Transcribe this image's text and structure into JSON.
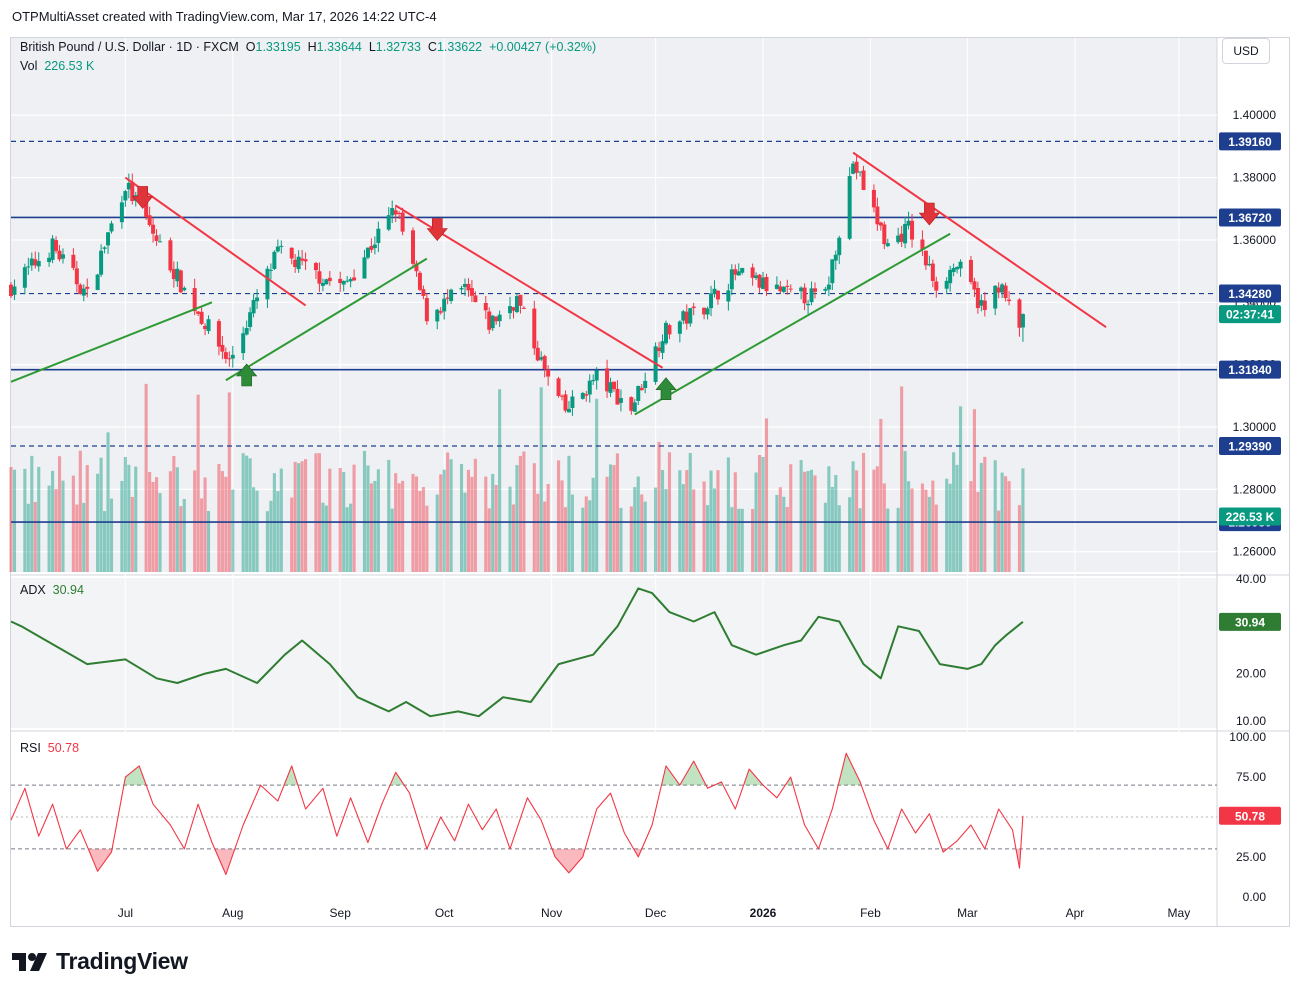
{
  "header": {
    "caption": "OTPMultiAsset created with TradingView.com, Mar 17, 2026 14:22 UTC-4"
  },
  "symbol": {
    "name": "British Pound / U.S. Dollar · 1D · FXCM",
    "open_label": "O",
    "open": "1.33195",
    "high_label": "H",
    "high": "1.33644",
    "low_label": "L",
    "low": "1.32733",
    "close_label": "C",
    "close": "1.33622",
    "change": "+0.00427 (+0.32%)"
  },
  "volume": {
    "label": "Vol",
    "value": "226.53 K"
  },
  "currency": "USD",
  "colors": {
    "up": "#089981",
    "down": "#f23645",
    "trend_down": "#f23645",
    "trend_up": "#2e9a33",
    "level": "#1e3f8f",
    "adx": "#2e7d32",
    "rsi": "#f23645",
    "badge_blue": "#1e3f8f"
  },
  "chart_data": [
    {
      "type": "candlestick",
      "pane": "price",
      "y_range": [
        1.2535,
        1.4145
      ],
      "y_ticks": [
        "1.40000",
        "1.38000",
        "1.36000",
        "1.34000",
        "1.32000",
        "1.30000",
        "1.28000",
        "1.26000"
      ],
      "x_labels": [
        "Jul",
        "Aug",
        "Sep",
        "Oct",
        "Nov",
        "Dec",
        "2026",
        "Feb",
        "Mar",
        "Apr",
        "May"
      ],
      "x_dates": [
        "2025-07-01",
        "2025-08-01",
        "2025-09-01",
        "2025-10-01",
        "2025-11-01",
        "2025-12-01",
        "2026-01-01",
        "2026-02-01",
        "2026-03-01",
        "2026-04-01",
        "2026-05-01"
      ],
      "range_start": "2025-05-29",
      "range_end": "2026-05-12",
      "last_bar": "2026-03-17",
      "key_points": [
        [
          "2025-05-29",
          1.345
        ],
        [
          "2025-06-10",
          1.358
        ],
        [
          "2025-06-20",
          1.342
        ],
        [
          "2025-07-01",
          1.378
        ],
        [
          "2025-07-10",
          1.36
        ],
        [
          "2025-07-18",
          1.344
        ],
        [
          "2025-07-31",
          1.321
        ],
        [
          "2025-08-14",
          1.356
        ],
        [
          "2025-08-25",
          1.349
        ],
        [
          "2025-09-02",
          1.345
        ],
        [
          "2025-09-17",
          1.37
        ],
        [
          "2025-09-26",
          1.336
        ],
        [
          "2025-10-07",
          1.344
        ],
        [
          "2025-10-14",
          1.333
        ],
        [
          "2025-10-22",
          1.341
        ],
        [
          "2025-10-31",
          1.315
        ],
        [
          "2025-11-05",
          1.305
        ],
        [
          "2025-11-14",
          1.316
        ],
        [
          "2025-11-24",
          1.306
        ],
        [
          "2025-12-03",
          1.33
        ],
        [
          "2025-12-15",
          1.339
        ],
        [
          "2025-12-24",
          1.349
        ],
        [
          "2026-01-09",
          1.342
        ],
        [
          "2026-01-19",
          1.342
        ],
        [
          "2026-01-27",
          1.385
        ],
        [
          "2026-02-06",
          1.358
        ],
        [
          "2026-02-12",
          1.364
        ],
        [
          "2026-02-20",
          1.346
        ],
        [
          "2026-02-26",
          1.352
        ],
        [
          "2026-03-06",
          1.337
        ],
        [
          "2026-03-10",
          1.346
        ],
        [
          "2026-03-16",
          1.331
        ],
        [
          "2026-03-17",
          1.3362
        ]
      ],
      "levels": [
        {
          "value": 1.3916,
          "label": "1.39160",
          "style": "dashed"
        },
        {
          "value": 1.3672,
          "label": "1.36720",
          "style": "solid"
        },
        {
          "value": 1.3428,
          "label": "1.34280",
          "style": "dashed"
        },
        {
          "value": 1.3184,
          "label": "1.31840",
          "style": "solid"
        },
        {
          "value": 1.2939,
          "label": "1.29390",
          "style": "dashed"
        },
        {
          "value": 1.2695,
          "label": "1.26950",
          "style": "solid"
        }
      ],
      "trend_lines": [
        {
          "color": "down",
          "from": [
            "2025-07-01",
            1.38
          ],
          "to": [
            "2025-08-22",
            1.339
          ]
        },
        {
          "color": "down",
          "from": [
            "2025-09-17",
            1.371
          ],
          "to": [
            "2025-12-03",
            1.319
          ]
        },
        {
          "color": "down",
          "from": [
            "2026-01-27",
            1.388
          ],
          "to": [
            "2026-04-10",
            1.332
          ]
        },
        {
          "color": "up",
          "from": [
            "2025-05-29",
            1.3145
          ],
          "to": [
            "2025-07-26",
            1.34
          ]
        },
        {
          "color": "up",
          "from": [
            "2025-07-30",
            1.315
          ],
          "to": [
            "2025-09-26",
            1.354
          ]
        },
        {
          "color": "up",
          "from": [
            "2025-11-25",
            1.304
          ],
          "to": [
            "2026-02-24",
            1.362
          ]
        }
      ],
      "signals": [
        {
          "type": "sell",
          "date": "2025-07-06",
          "price": 1.3733
        },
        {
          "type": "sell",
          "date": "2025-09-29",
          "price": 1.363
        },
        {
          "type": "sell",
          "date": "2026-02-18",
          "price": 1.368
        },
        {
          "type": "buy",
          "date": "2025-08-05",
          "price": 1.317
        },
        {
          "type": "buy",
          "date": "2025-12-04",
          "price": 1.3126
        }
      ],
      "last_price_badge": {
        "price": 1.3362,
        "text": "02:37:41"
      },
      "volume_badge": {
        "price": 1.2713,
        "text": "226.53 K"
      }
    },
    {
      "type": "line",
      "pane": "adx",
      "title": "ADX",
      "last_value": 30.94,
      "y_ticks": [
        "40.00",
        "20.00",
        "10.00"
      ],
      "y_range": [
        8.5,
        40.2
      ],
      "key_points": [
        [
          "2025-05-29",
          31
        ],
        [
          "2025-06-01",
          30
        ],
        [
          "2025-06-20",
          22
        ],
        [
          "2025-07-01",
          23
        ],
        [
          "2025-07-10",
          19
        ],
        [
          "2025-07-16",
          18
        ],
        [
          "2025-07-24",
          20
        ],
        [
          "2025-07-30",
          21
        ],
        [
          "2025-08-08",
          18
        ],
        [
          "2025-08-16",
          24
        ],
        [
          "2025-08-21",
          27
        ],
        [
          "2025-08-29",
          22
        ],
        [
          "2025-09-06",
          15
        ],
        [
          "2025-09-15",
          12
        ],
        [
          "2025-09-20",
          14
        ],
        [
          "2025-09-27",
          11
        ],
        [
          "2025-10-05",
          12
        ],
        [
          "2025-10-11",
          11
        ],
        [
          "2025-10-18",
          15
        ],
        [
          "2025-10-26",
          14
        ],
        [
          "2025-11-03",
          22
        ],
        [
          "2025-11-13",
          24
        ],
        [
          "2025-11-20",
          30
        ],
        [
          "2025-11-26",
          38
        ],
        [
          "2025-11-30",
          37
        ],
        [
          "2025-12-05",
          33
        ],
        [
          "2025-12-12",
          31
        ],
        [
          "2025-12-18",
          33
        ],
        [
          "2025-12-23",
          26
        ],
        [
          "2025-12-30",
          24
        ],
        [
          "2026-01-07",
          26
        ],
        [
          "2026-01-12",
          27
        ],
        [
          "2026-01-17",
          32
        ],
        [
          "2026-01-23",
          31
        ],
        [
          "2026-01-30",
          22
        ],
        [
          "2026-02-04",
          19
        ],
        [
          "2026-02-09",
          30
        ],
        [
          "2026-02-15",
          29
        ],
        [
          "2026-02-21",
          22
        ],
        [
          "2026-03-01",
          21
        ],
        [
          "2026-03-05",
          22
        ],
        [
          "2026-03-09",
          26
        ],
        [
          "2026-03-12",
          28
        ],
        [
          "2026-03-17",
          30.94
        ]
      ]
    },
    {
      "type": "line",
      "pane": "rsi",
      "title": "RSI",
      "last_value": 50.78,
      "y_ticks": [
        "100.00",
        "75.00",
        "50.00",
        "25.00",
        "0.00"
      ],
      "y_range": [
        -2,
        102
      ],
      "bands": {
        "upper": 70,
        "middle": 50,
        "lower": 30
      },
      "key_points": [
        [
          "2025-05-29",
          48
        ],
        [
          "2025-06-02",
          68
        ],
        [
          "2025-06-06",
          38
        ],
        [
          "2025-06-10",
          58
        ],
        [
          "2025-06-14",
          30
        ],
        [
          "2025-06-18",
          42
        ],
        [
          "2025-06-23",
          16
        ],
        [
          "2025-06-27",
          28
        ],
        [
          "2025-07-01",
          75
        ],
        [
          "2025-07-05",
          82
        ],
        [
          "2025-07-09",
          58
        ],
        [
          "2025-07-14",
          45
        ],
        [
          "2025-07-18",
          30
        ],
        [
          "2025-07-22",
          58
        ],
        [
          "2025-07-26",
          34
        ],
        [
          "2025-07-30",
          14
        ],
        [
          "2025-08-04",
          45
        ],
        [
          "2025-08-09",
          70
        ],
        [
          "2025-08-14",
          60
        ],
        [
          "2025-08-18",
          82
        ],
        [
          "2025-08-22",
          55
        ],
        [
          "2025-08-27",
          68
        ],
        [
          "2025-08-31",
          38
        ],
        [
          "2025-09-04",
          62
        ],
        [
          "2025-09-09",
          34
        ],
        [
          "2025-09-13",
          58
        ],
        [
          "2025-09-17",
          78
        ],
        [
          "2025-09-21",
          65
        ],
        [
          "2025-09-26",
          30
        ],
        [
          "2025-09-30",
          50
        ],
        [
          "2025-10-04",
          35
        ],
        [
          "2025-10-08",
          58
        ],
        [
          "2025-10-12",
          42
        ],
        [
          "2025-10-16",
          55
        ],
        [
          "2025-10-20",
          30
        ],
        [
          "2025-10-25",
          62
        ],
        [
          "2025-10-29",
          48
        ],
        [
          "2025-11-02",
          25
        ],
        [
          "2025-11-06",
          15
        ],
        [
          "2025-11-10",
          25
        ],
        [
          "2025-11-14",
          55
        ],
        [
          "2025-11-18",
          65
        ],
        [
          "2025-11-22",
          40
        ],
        [
          "2025-11-26",
          25
        ],
        [
          "2025-11-30",
          45
        ],
        [
          "2025-12-04",
          82
        ],
        [
          "2025-12-08",
          70
        ],
        [
          "2025-12-12",
          85
        ],
        [
          "2025-12-16",
          68
        ],
        [
          "2025-12-20",
          72
        ],
        [
          "2025-12-24",
          55
        ],
        [
          "2025-12-28",
          80
        ],
        [
          "2026-01-01",
          70
        ],
        [
          "2026-01-05",
          62
        ],
        [
          "2026-01-09",
          75
        ],
        [
          "2026-01-13",
          45
        ],
        [
          "2026-01-17",
          30
        ],
        [
          "2026-01-21",
          55
        ],
        [
          "2026-01-25",
          90
        ],
        [
          "2026-01-29",
          72
        ],
        [
          "2026-02-02",
          48
        ],
        [
          "2026-02-06",
          30
        ],
        [
          "2026-02-10",
          55
        ],
        [
          "2026-02-14",
          40
        ],
        [
          "2026-02-18",
          52
        ],
        [
          "2026-02-22",
          28
        ],
        [
          "2026-02-26",
          35
        ],
        [
          "2026-03-02",
          45
        ],
        [
          "2026-03-06",
          30
        ],
        [
          "2026-03-10",
          55
        ],
        [
          "2026-03-14",
          42
        ],
        [
          "2026-03-16",
          18
        ],
        [
          "2026-03-17",
          50.78
        ]
      ]
    }
  ],
  "brand": "TradingView"
}
